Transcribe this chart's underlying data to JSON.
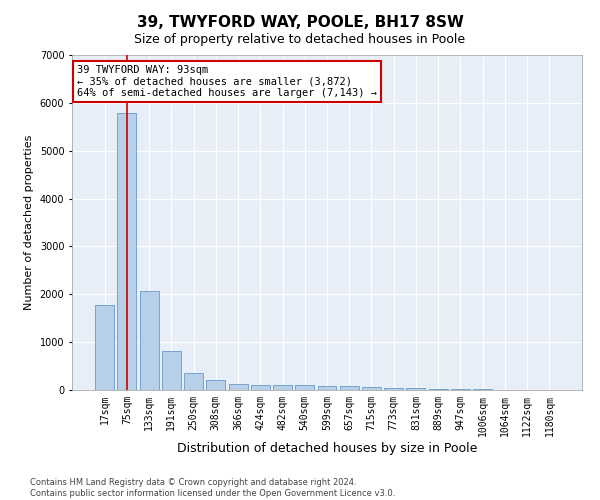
{
  "title": "39, TWYFORD WAY, POOLE, BH17 8SW",
  "subtitle": "Size of property relative to detached houses in Poole",
  "xlabel": "Distribution of detached houses by size in Poole",
  "ylabel": "Number of detached properties",
  "footer_line1": "Contains HM Land Registry data © Crown copyright and database right 2024.",
  "footer_line2": "Contains public sector information licensed under the Open Government Licence v3.0.",
  "bar_labels": [
    "17sqm",
    "75sqm",
    "133sqm",
    "191sqm",
    "250sqm",
    "308sqm",
    "366sqm",
    "424sqm",
    "482sqm",
    "540sqm",
    "599sqm",
    "657sqm",
    "715sqm",
    "773sqm",
    "831sqm",
    "889sqm",
    "947sqm",
    "1006sqm",
    "1064sqm",
    "1122sqm",
    "1180sqm"
  ],
  "bar_values": [
    1780,
    5780,
    2060,
    820,
    360,
    200,
    120,
    100,
    95,
    95,
    80,
    75,
    70,
    50,
    40,
    30,
    20,
    15,
    10,
    5,
    5
  ],
  "bar_color": "#b8cfe8",
  "bar_edge_color": "#6699cc",
  "background_color": "#e8eef8",
  "grid_color": "#ffffff",
  "ylim": [
    0,
    7000
  ],
  "yticks": [
    0,
    1000,
    2000,
    3000,
    4000,
    5000,
    6000,
    7000
  ],
  "property_bar_index": 1,
  "vline_color": "#cc0000",
  "annotation_text": "39 TWYFORD WAY: 93sqm\n← 35% of detached houses are smaller (3,872)\n64% of semi-detached houses are larger (7,143) →",
  "annotation_box_color": "#ffffff",
  "annotation_border_color": "#cc0000",
  "annotation_fontsize": 7.5,
  "title_fontsize": 11,
  "subtitle_fontsize": 9,
  "xlabel_fontsize": 9,
  "ylabel_fontsize": 8,
  "tick_fontsize": 7
}
